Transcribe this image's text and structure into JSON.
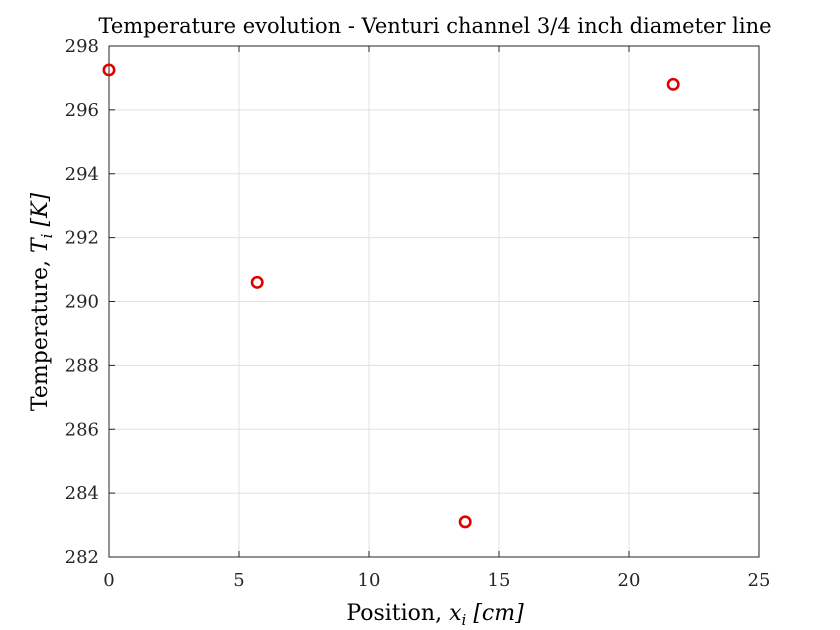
{
  "chart_data": {
    "type": "scatter",
    "title": "Temperature evolution - Venturi channel 3/4 inch diameter line",
    "xlabel": "Position, x_i [cm]",
    "xlabel_parts": {
      "prefix": "Position, ",
      "var": "x",
      "sub": "i",
      "unit": "[cm]"
    },
    "ylabel": "Temperature, T_i [K]",
    "ylabel_parts": {
      "prefix": "Temperature, ",
      "var": "T",
      "sub": "i",
      "unit": "[K]"
    },
    "xlim": [
      0,
      25
    ],
    "ylim": [
      282,
      298
    ],
    "xticks": [
      0,
      5,
      10,
      15,
      20,
      25
    ],
    "yticks": [
      282,
      284,
      286,
      288,
      290,
      292,
      294,
      296,
      298
    ],
    "grid": true,
    "marker": "circle-open",
    "marker_color": "#e00000",
    "series": [
      {
        "x": [
          0,
          5.7,
          13.7,
          21.7
        ],
        "y": [
          297.25,
          290.6,
          283.1,
          296.8
        ]
      }
    ]
  }
}
